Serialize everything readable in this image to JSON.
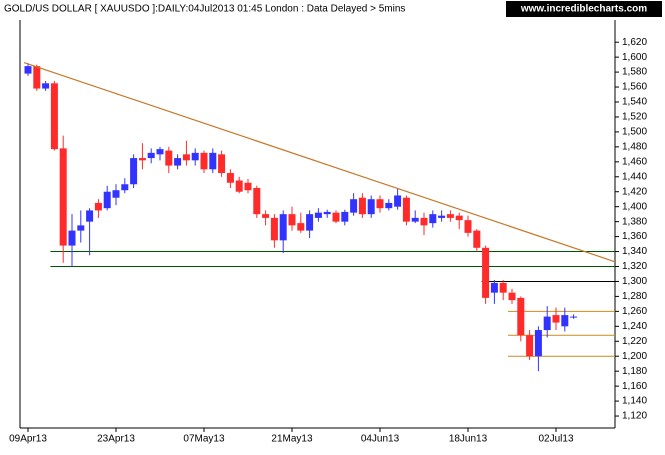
{
  "chart_data": {
    "type": "candlestick",
    "title": "GOLD/US DOLLAR [ XAUUSDO ]:DAILY:04Jul2013 01:45 London : Data Delayed > 5mins",
    "source": "www.incrediblecharts.com",
    "categories": [
      "09Apr13",
      null,
      null,
      null,
      null,
      null,
      null,
      null,
      null,
      null,
      "23Apr13",
      null,
      null,
      null,
      null,
      null,
      null,
      null,
      null,
      null,
      "07May13",
      null,
      null,
      null,
      null,
      null,
      null,
      null,
      null,
      null,
      "21May13",
      null,
      null,
      null,
      null,
      null,
      null,
      null,
      null,
      null,
      "04Jun13",
      null,
      null,
      null,
      null,
      null,
      null,
      null,
      null,
      null,
      "18Jun13",
      null,
      null,
      null,
      null,
      null,
      null,
      null,
      null,
      null,
      "02Jul13",
      null,
      null
    ],
    "open": [
      1578,
      1588,
      1558,
      1565,
      1478,
      1348,
      1368,
      1380,
      1405,
      1398,
      1412,
      1422,
      1430,
      1465,
      1465,
      1470,
      1475,
      1455,
      1470,
      1462,
      1472,
      1450,
      1470,
      1445,
      1435,
      1432,
      1425,
      1390,
      1385,
      1355,
      1390,
      1378,
      1368,
      1385,
      1390,
      1392,
      1380,
      1392,
      1412,
      1390,
      1410,
      1398,
      1400,
      1412,
      1380,
      1385,
      1378,
      1385,
      1390,
      1388,
      1382,
      1368,
      1345,
      1285,
      1298,
      1285,
      1278,
      1228,
      1200,
      1235,
      1255,
      1240,
      1252
    ],
    "high": [
      1592,
      1590,
      1568,
      1568,
      1495,
      1390,
      1395,
      1398,
      1410,
      1428,
      1430,
      1438,
      1470,
      1485,
      1478,
      1480,
      1480,
      1470,
      1488,
      1478,
      1475,
      1478,
      1475,
      1450,
      1440,
      1437,
      1428,
      1395,
      1390,
      1395,
      1400,
      1392,
      1395,
      1398,
      1396,
      1395,
      1396,
      1418,
      1418,
      1415,
      1415,
      1410,
      1425,
      1415,
      1395,
      1392,
      1395,
      1395,
      1395,
      1392,
      1388,
      1370,
      1348,
      1302,
      1302,
      1290,
      1280,
      1235,
      1240,
      1267,
      1265,
      1265,
      1256
    ],
    "low": [
      1575,
      1555,
      1555,
      1475,
      1325,
      1320,
      1352,
      1335,
      1385,
      1395,
      1402,
      1418,
      1425,
      1450,
      1458,
      1462,
      1445,
      1450,
      1455,
      1455,
      1445,
      1445,
      1440,
      1425,
      1418,
      1418,
      1385,
      1375,
      1345,
      1338,
      1368,
      1365,
      1358,
      1380,
      1385,
      1378,
      1375,
      1388,
      1385,
      1385,
      1392,
      1395,
      1396,
      1375,
      1378,
      1362,
      1372,
      1380,
      1380,
      1370,
      1360,
      1340,
      1270,
      1270,
      1275,
      1270,
      1220,
      1195,
      1180,
      1225,
      1235,
      1233,
      1250
    ],
    "close": [
      1588,
      1558,
      1565,
      1477,
      1348,
      1368,
      1375,
      1395,
      1395,
      1420,
      1422,
      1430,
      1465,
      1462,
      1472,
      1477,
      1455,
      1465,
      1462,
      1472,
      1450,
      1472,
      1445,
      1432,
      1420,
      1422,
      1390,
      1385,
      1355,
      1390,
      1375,
      1368,
      1390,
      1392,
      1393,
      1380,
      1393,
      1410,
      1390,
      1410,
      1398,
      1405,
      1415,
      1380,
      1385,
      1375,
      1390,
      1388,
      1385,
      1382,
      1365,
      1345,
      1278,
      1298,
      1285,
      1275,
      1228,
      1200,
      1235,
      1253,
      1245,
      1255,
      1253
    ],
    "up_color": "#3333ff",
    "down_color": "#ff2a2a",
    "trendline": {
      "from": [
        0,
        1591
      ],
      "to": [
        62,
        1345
      ],
      "color": "#c87828"
    },
    "levels": [
      {
        "value": 1340,
        "from": 3,
        "color": "#005500"
      },
      {
        "value": 1320,
        "from": 3,
        "color": "#005500"
      },
      {
        "value": 1300,
        "from": 52,
        "color": "#000000"
      },
      {
        "value": 1260,
        "from": 55,
        "color": "#cc8a1e"
      },
      {
        "value": 1228,
        "from": 55,
        "color": "#cc8a1e"
      },
      {
        "value": 1200,
        "from": 55,
        "color": "#cc8a1e"
      }
    ],
    "ylim": [
      1104,
      1647
    ],
    "yticks": [
      {
        "value": 1620,
        "label": "1,620"
      },
      {
        "value": 1600,
        "label": "1,600"
      },
      {
        "value": 1580,
        "label": "1,580"
      },
      {
        "value": 1560,
        "label": "1,560"
      },
      {
        "value": 1540,
        "label": "1,540"
      },
      {
        "value": 1520,
        "label": "1,520"
      },
      {
        "value": 1500,
        "label": "1,500"
      },
      {
        "value": 1480,
        "label": "1,480"
      },
      {
        "value": 1460,
        "label": "1,460"
      },
      {
        "value": 1440,
        "label": "1,440"
      },
      {
        "value": 1420,
        "label": "1,420"
      },
      {
        "value": 1400,
        "label": "1,400"
      },
      {
        "value": 1380,
        "label": "1,380"
      },
      {
        "value": 1360,
        "label": "1,360"
      },
      {
        "value": 1340,
        "label": "1,340"
      },
      {
        "value": 1320,
        "label": "1,320"
      },
      {
        "value": 1300,
        "label": "1,300"
      },
      {
        "value": 1280,
        "label": "1,280"
      },
      {
        "value": 1260,
        "label": "1,260"
      },
      {
        "value": 1240,
        "label": "1,240"
      },
      {
        "value": 1220,
        "label": "1,220"
      },
      {
        "value": 1200,
        "label": "1,200"
      },
      {
        "value": 1180,
        "label": "1,180"
      },
      {
        "value": 1160,
        "label": "1,160"
      },
      {
        "value": 1140,
        "label": "1,140"
      },
      {
        "value": 1120,
        "label": "1,120"
      }
    ]
  }
}
